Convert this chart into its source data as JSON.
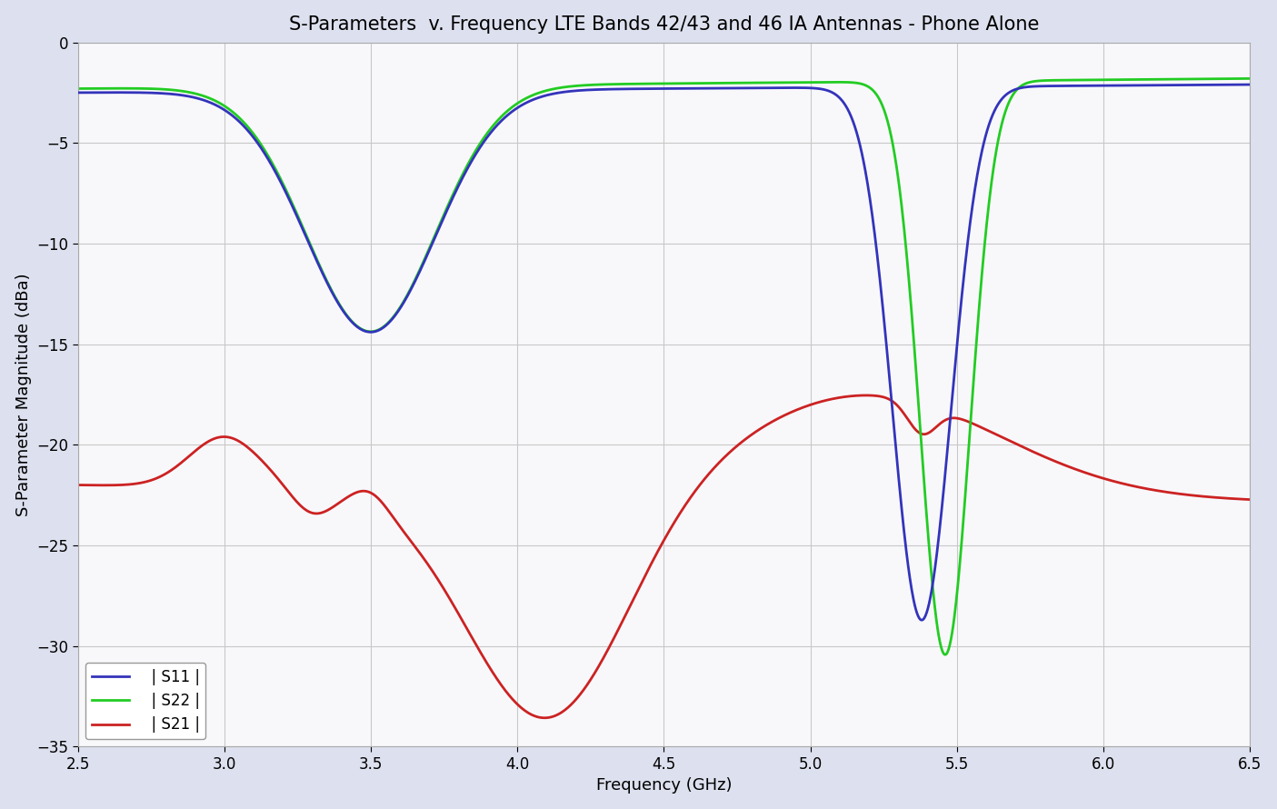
{
  "title": "S-Parameters  v. Frequency LTE Bands 42/43 and 46 IA Antennas - Phone Alone",
  "xlabel": "Frequency (GHz)",
  "ylabel": "S-Parameter Magnitude (dBa)",
  "xlim": [
    2.5,
    6.5
  ],
  "ylim": [
    -35,
    0
  ],
  "xticks": [
    2.5,
    3.0,
    3.5,
    4.0,
    4.5,
    5.0,
    5.5,
    6.0,
    6.5
  ],
  "yticks": [
    0,
    -5,
    -10,
    -15,
    -20,
    -25,
    -30,
    -35
  ],
  "background_color": "#dde0ee",
  "plot_background_color": "#f8f8fb",
  "grid_color": "#c8c8c8",
  "line_S11_color": "#3333bb",
  "line_S22_color": "#22cc22",
  "line_S21_color": "#cc2222",
  "legend_labels": [
    "  | S11 |",
    "  | S22 |",
    "  | S21 |"
  ],
  "title_fontsize": 15,
  "axis_label_fontsize": 13,
  "tick_fontsize": 12,
  "legend_fontsize": 12
}
